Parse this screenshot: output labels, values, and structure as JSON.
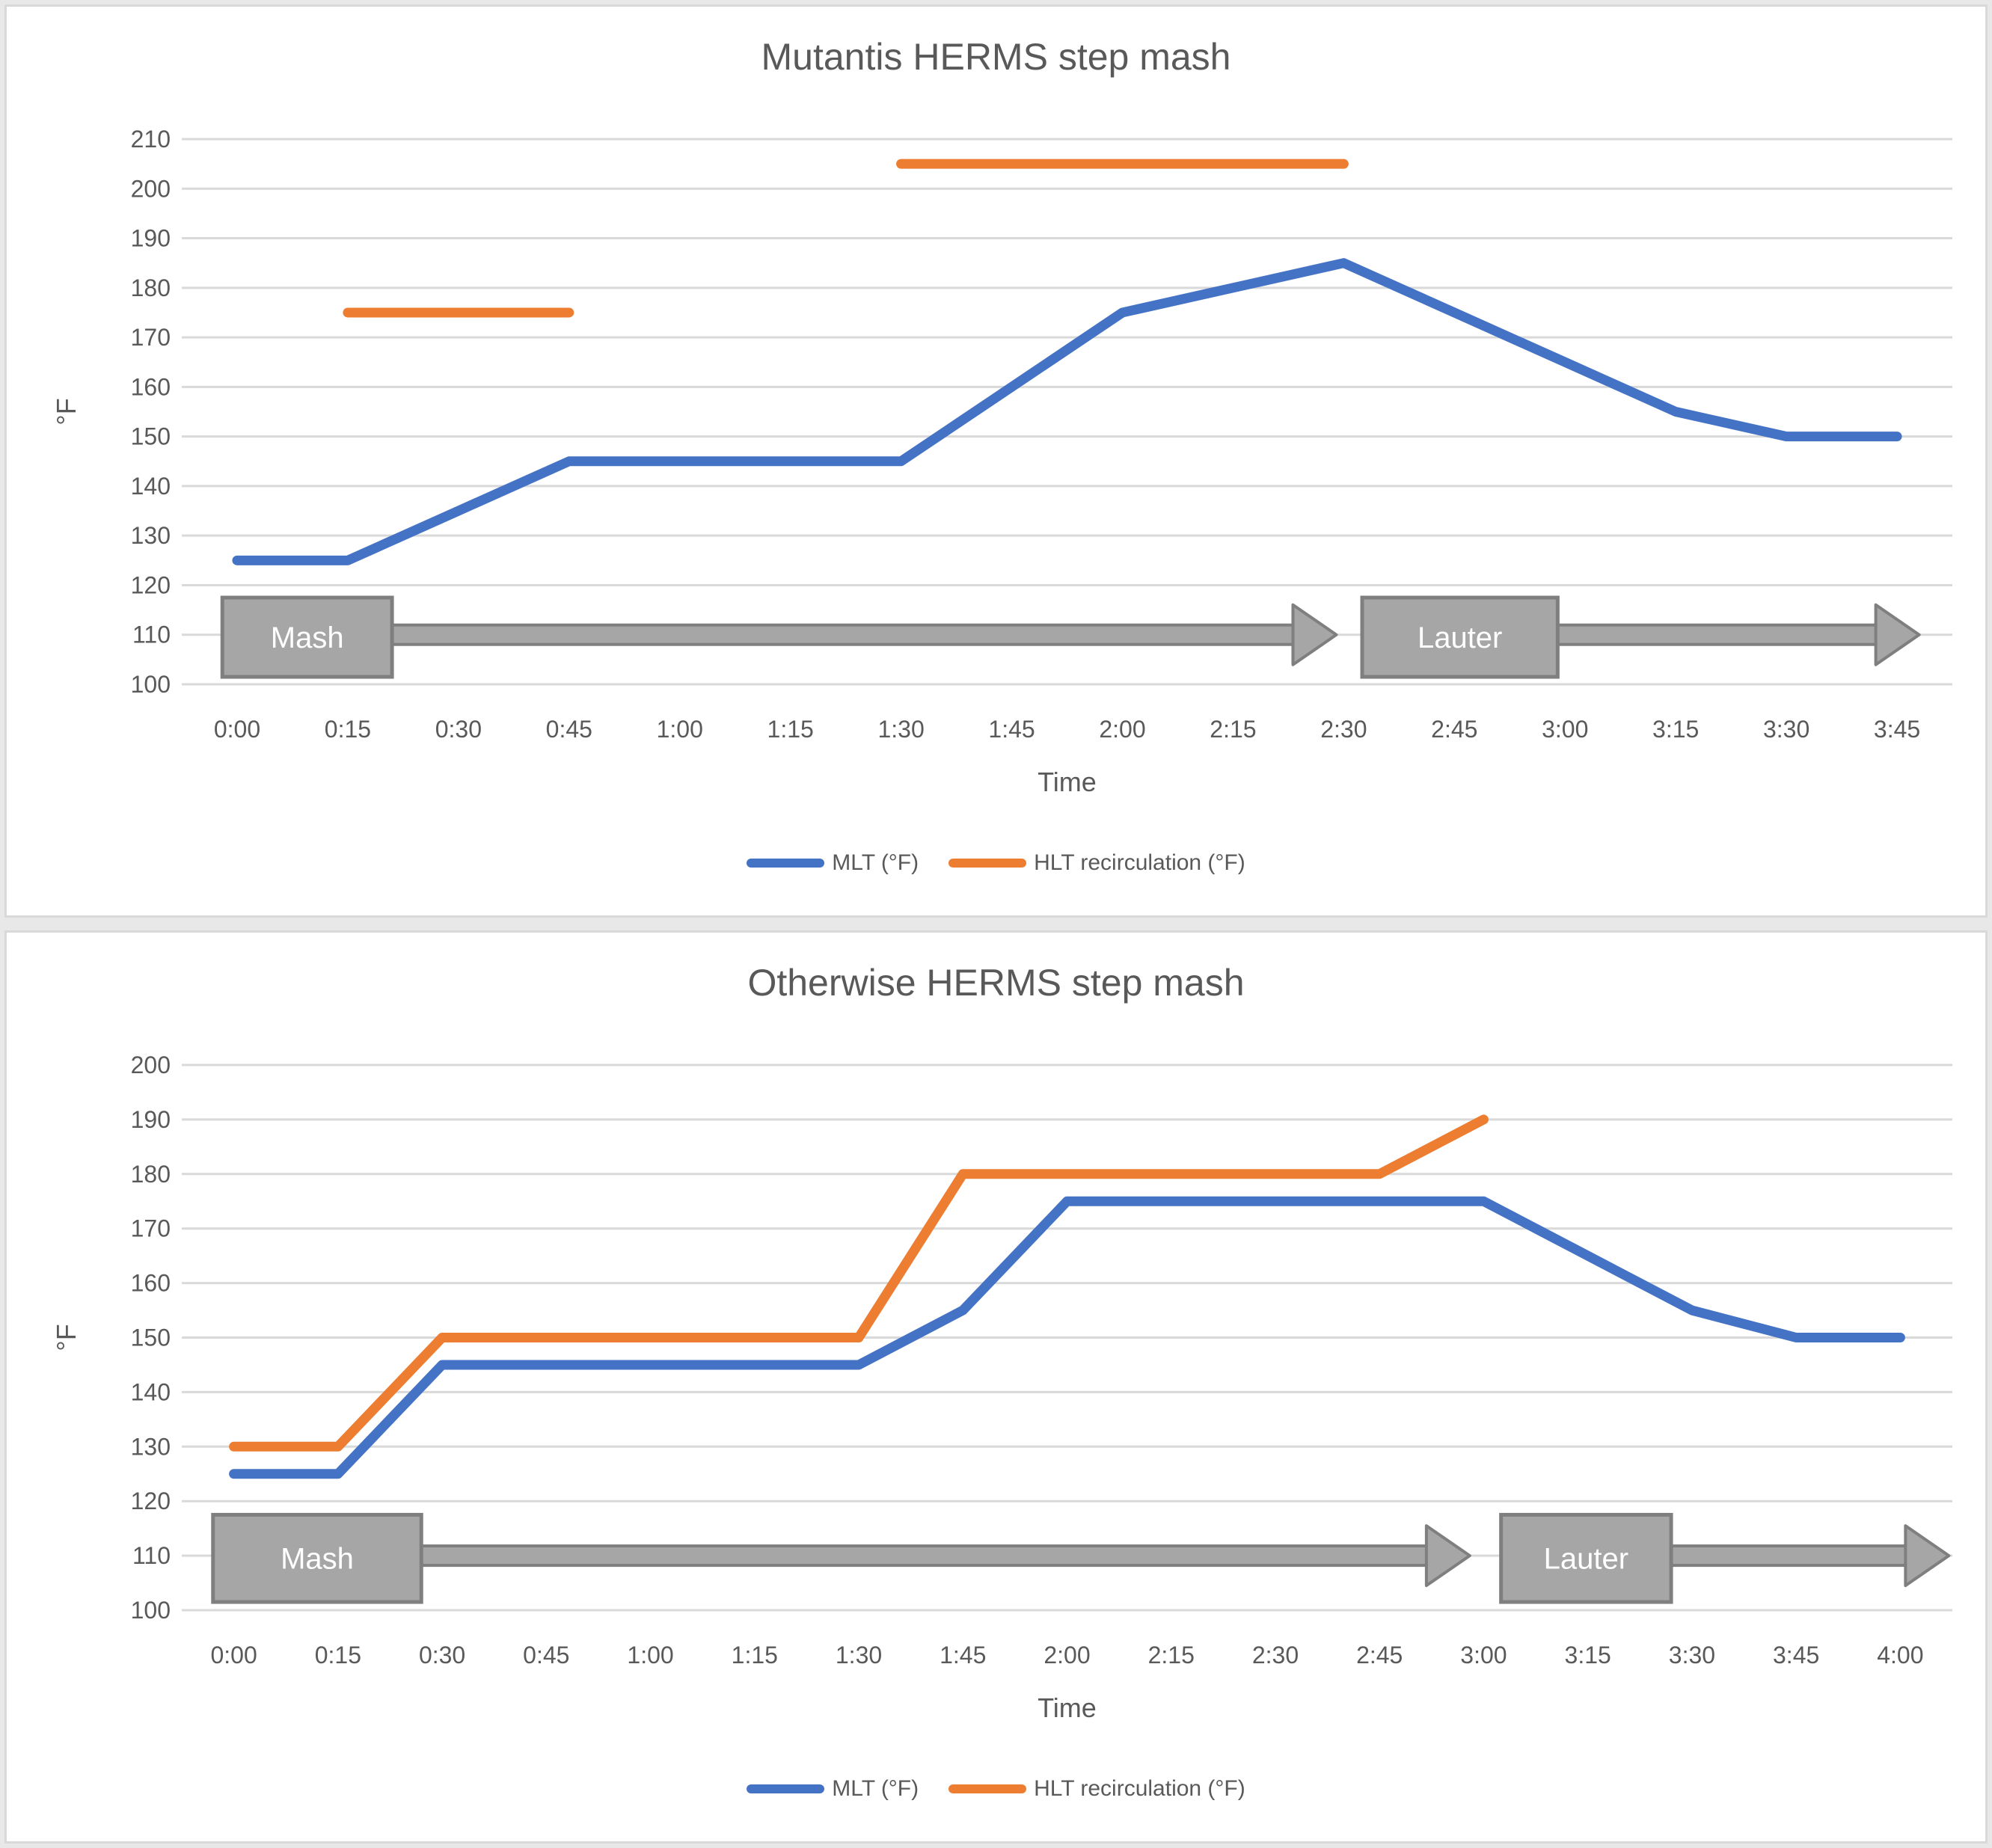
{
  "page": {
    "background_color": "#e8e8e8",
    "panel_background": "#ffffff",
    "panel_border_color": "#d9d9d9",
    "gridline_color": "#d9d9d9",
    "text_color": "#595959",
    "arrow_fill": "#a6a6a6",
    "arrow_border": "#7f7f7f",
    "arrow_text_color": "#ffffff"
  },
  "chart_data": [
    {
      "type": "line",
      "title": "Mutantis HERMS step mash",
      "xlabel": "Time",
      "ylabel": "°F",
      "ylim": [
        100,
        210
      ],
      "ytick_step": 10,
      "grid": true,
      "legend_position": "bottom",
      "categories": [
        "0:00",
        "0:15",
        "0:30",
        "0:45",
        "1:00",
        "1:15",
        "1:30",
        "1:45",
        "2:00",
        "2:15",
        "2:30",
        "2:45",
        "3:00",
        "3:15",
        "3:30",
        "3:45"
      ],
      "series": [
        {
          "name": "MLT (°F)",
          "color": "#4472C4",
          "values": [
            125,
            125,
            135,
            145,
            145,
            145,
            145,
            160,
            175,
            180,
            185,
            175,
            165,
            155,
            150,
            150
          ]
        },
        {
          "name": "HLT recirculation (°F)",
          "color": "#ED7D31",
          "values": [
            null,
            175,
            175,
            175,
            null,
            null,
            205,
            205,
            205,
            205,
            205,
            null,
            null,
            null,
            null,
            null
          ]
        }
      ],
      "process_arrows": [
        {
          "label": "Mash",
          "start": "0:00",
          "end": "2:29",
          "box_start_min": -2,
          "box_end_min": 21,
          "tip_min": 149,
          "band_center_f": 110,
          "box_top_f": 117.5,
          "box_bottom_f": 101.5
        },
        {
          "label": "Lauter",
          "start": "2:32",
          "end": "3:48",
          "box_start_min": 152.5,
          "box_end_min": 179,
          "tip_min": 228,
          "band_center_f": 110,
          "box_top_f": 117.5,
          "box_bottom_f": 101.5
        }
      ]
    },
    {
      "type": "line",
      "title": "Otherwise HERMS step mash",
      "xlabel": "Time",
      "ylabel": "°F",
      "ylim": [
        100,
        200
      ],
      "ytick_step": 10,
      "grid": true,
      "legend_position": "bottom",
      "categories": [
        "0:00",
        "0:15",
        "0:30",
        "0:45",
        "1:00",
        "1:15",
        "1:30",
        "1:45",
        "2:00",
        "2:15",
        "2:30",
        "2:45",
        "3:00",
        "3:15",
        "3:30",
        "3:45",
        "4:00"
      ],
      "series": [
        {
          "name": "MLT (°F)",
          "color": "#4472C4",
          "values": [
            125,
            125,
            145,
            145,
            145,
            145,
            145,
            155,
            175,
            175,
            175,
            175,
            175,
            165,
            155,
            150,
            150
          ]
        },
        {
          "name": "HLT recirculation (°F)",
          "color": "#ED7D31",
          "values": [
            130,
            130,
            150,
            150,
            150,
            150,
            150,
            180,
            180,
            180,
            180,
            180,
            190,
            null,
            null,
            null,
            null
          ]
        }
      ],
      "process_arrows": [
        {
          "label": "Mash",
          "start": "0:00",
          "end": "2:58",
          "box_start_min": -3,
          "box_end_min": 27,
          "tip_min": 178,
          "band_center_f": 110,
          "box_top_f": 117.5,
          "box_bottom_f": 101.5
        },
        {
          "label": "Lauter",
          "start": "3:02",
          "end": "4:07",
          "box_start_min": 182.5,
          "box_end_min": 207,
          "tip_min": 247,
          "band_center_f": 110,
          "box_top_f": 117.5,
          "box_bottom_f": 101.5
        }
      ]
    }
  ]
}
